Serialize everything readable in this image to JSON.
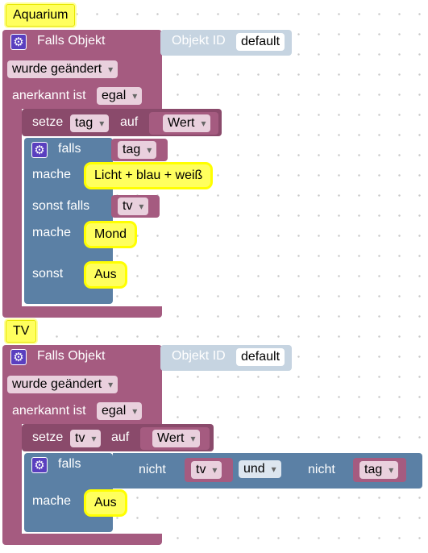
{
  "blocks": [
    {
      "comment": "Aquarium",
      "trigger_label": "Falls Objekt",
      "object_id_label": "Objekt ID",
      "object_id_value": "default",
      "changed_dropdown": "wurde geändert",
      "ack_label": "anerkannt ist",
      "ack_dropdown": "egal",
      "set_label": "setze",
      "set_var": "tag",
      "set_to_label": "auf",
      "set_value": "Wert",
      "if_label": "falls",
      "if_condition": "tag",
      "then_label": "mache",
      "then_value": "Licht + blau + weiß",
      "elseif_label": "sonst falls",
      "elseif_condition": "tv",
      "elseif_then_label": "mache",
      "elseif_then_value": "Mond",
      "else_label": "sonst",
      "else_value": "Aus"
    },
    {
      "comment": "TV",
      "trigger_label": "Falls Objekt",
      "object_id_label": "Objekt ID",
      "object_id_value": "default",
      "changed_dropdown": "wurde geändert",
      "ack_label": "anerkannt ist",
      "ack_dropdown": "egal",
      "set_label": "setze",
      "set_var": "tv",
      "set_to_label": "auf",
      "set_value": "Wert",
      "if_label": "falls",
      "not1_label": "nicht",
      "not1_var": "tv",
      "and_dropdown": "und",
      "not2_label": "nicht",
      "not2_var": "tag",
      "then_label": "mache",
      "then_value": "Aus"
    }
  ],
  "colors": {
    "trigger": "#a55b80",
    "control": "#5b80a5",
    "comment": "#ffff5e",
    "object_id_block": "#c6d4e1"
  },
  "icons": {
    "gear": "gear-icon"
  }
}
